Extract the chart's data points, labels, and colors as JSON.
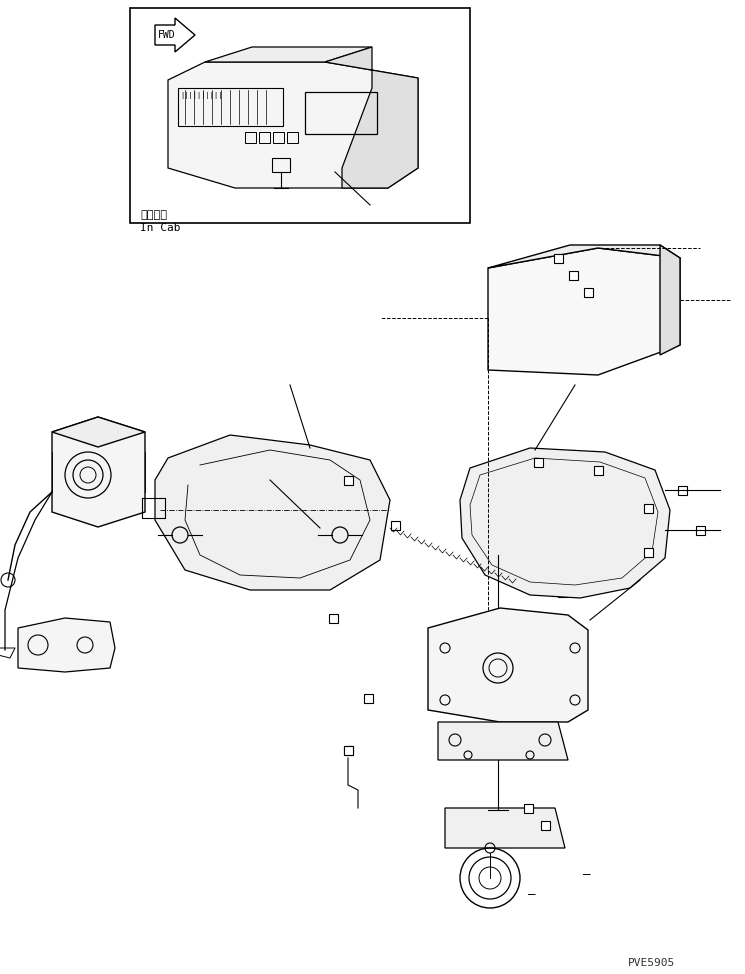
{
  "bg_color": "#ffffff",
  "line_color": "#000000",
  "fig_width": 7.45,
  "fig_height": 9.74,
  "watermark": "PVE5905",
  "label_incab_jp": "キャブ内",
  "label_incab_en": "In Cab"
}
